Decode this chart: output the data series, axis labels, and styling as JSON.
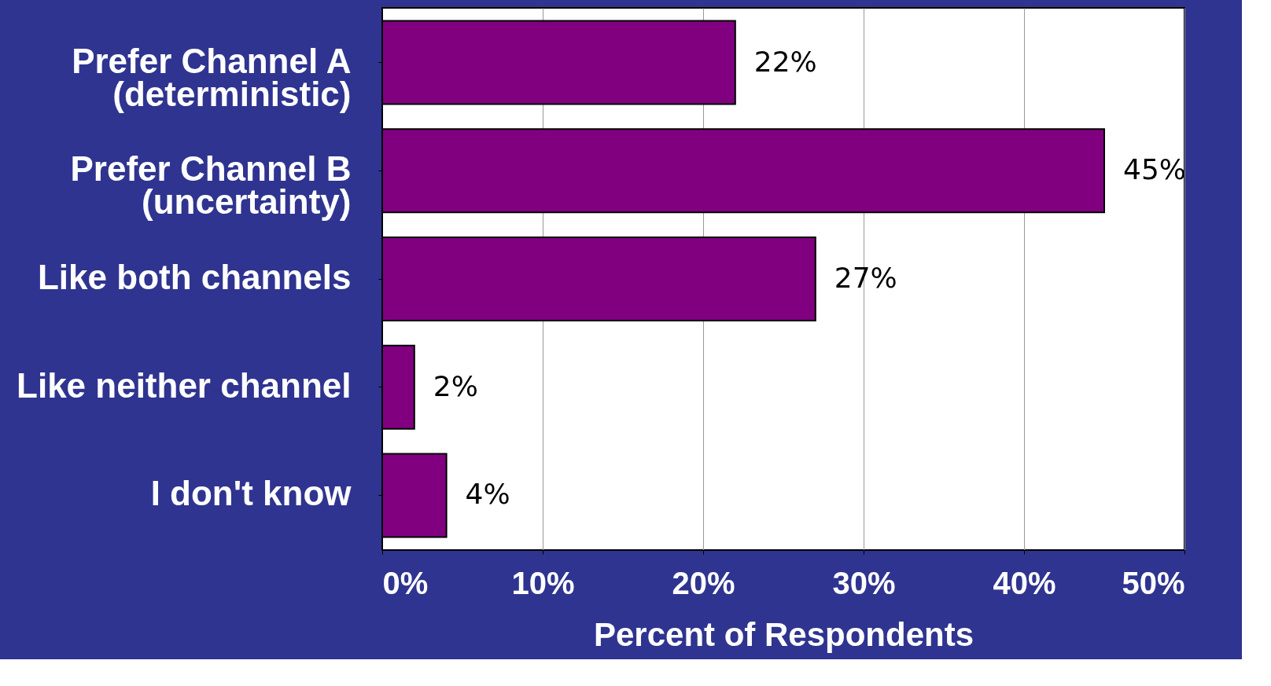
{
  "chart_data": {
    "type": "bar",
    "orientation": "horizontal",
    "xlabel": "Percent of Respondents",
    "categories": [
      "Prefer Channel A\n(deterministic)",
      "Prefer Channel B\n(uncertainty)",
      "Like both channels",
      "Like neither channel",
      "I don't know"
    ],
    "values": [
      22,
      45,
      27,
      2,
      4
    ],
    "color": "#800080",
    "value_labels": [
      "22%",
      "45%",
      "27%",
      "2%",
      "4%"
    ],
    "xlim": [
      0,
      50
    ],
    "xticks": [
      {
        "value": 0,
        "label": "0%"
      },
      {
        "value": 10,
        "label": "10%"
      },
      {
        "value": 20,
        "label": "20%"
      },
      {
        "value": 30,
        "label": "30%"
      },
      {
        "value": 40,
        "label": "40%"
      },
      {
        "value": 50,
        "label": "50%"
      }
    ],
    "grid": "x"
  }
}
